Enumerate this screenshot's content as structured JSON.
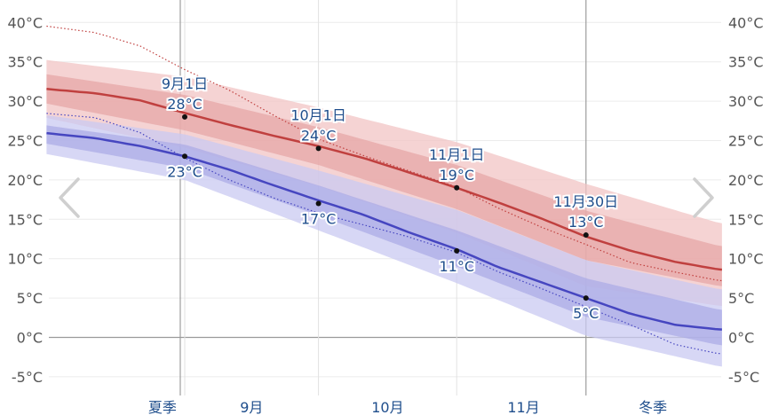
{
  "chart_data": {
    "type": "line",
    "y_ticks": [
      "40°C",
      "35°C",
      "30°C",
      "25°C",
      "20°C",
      "15°C",
      "10°C",
      "5°C",
      "0°C",
      "-5°C"
    ],
    "y_values": [
      40,
      35,
      30,
      25,
      20,
      15,
      10,
      5,
      0,
      -5
    ],
    "ylim": [
      -6,
      41
    ],
    "x_range_days": [
      0,
      120
    ],
    "season_labels": [
      {
        "label": "夏季",
        "day": -5
      },
      {
        "label": "9月",
        "day": 15
      },
      {
        "label": "10月",
        "day": 45.5
      },
      {
        "label": "11月",
        "day": 76
      },
      {
        "label": "冬季",
        "day": 105
      }
    ],
    "key_dates": [
      {
        "label": "9月1日",
        "day": 0,
        "high": 28,
        "low": 23,
        "high_label": "28°C",
        "low_label": "23°C"
      },
      {
        "label": "10月1日",
        "day": 30,
        "high": 24,
        "low": 17,
        "high_label": "24°C",
        "low_label": "17°C"
      },
      {
        "label": "11月1日",
        "day": 61,
        "high": 19,
        "low": 11,
        "high_label": "19°C",
        "low_label": "11°C"
      },
      {
        "label": "11月30日",
        "day": 90,
        "high": 13,
        "low": 5,
        "high_label": "13°C",
        "low_label": "5°C"
      }
    ],
    "grid": true,
    "series": [
      {
        "key": "high",
        "color": "#c0403f",
        "x": [
          -32,
          -20,
          -10,
          0,
          10,
          20,
          30,
          40,
          50,
          61,
          70,
          80,
          90,
          100,
          110,
          120
        ],
        "y": [
          31.6,
          31,
          30.1,
          28.5,
          27,
          25.6,
          24.3,
          22.8,
          21,
          19,
          17.2,
          15.1,
          12.8,
          11,
          9.6,
          8.6
        ]
      },
      {
        "key": "high_p90",
        "x": [
          -32,
          0,
          30,
          61,
          90,
          120
        ],
        "y": [
          35.3,
          33.1,
          29.2,
          24.8,
          19.5,
          14.5
        ]
      },
      {
        "key": "high_p75",
        "x": [
          -32,
          0,
          30,
          61,
          90,
          120
        ],
        "y": [
          33.5,
          30.8,
          26.7,
          21.9,
          16.1,
          11.6
        ]
      },
      {
        "key": "high_p25",
        "x": [
          -32,
          0,
          30,
          61,
          90,
          120
        ],
        "y": [
          29.8,
          26.3,
          21.9,
          16.3,
          9.8,
          6.5
        ]
      },
      {
        "key": "high_p10",
        "x": [
          -32,
          0,
          30,
          61,
          90,
          120
        ],
        "y": [
          28,
          24.1,
          19.2,
          13.3,
          6.5,
          4
        ]
      },
      {
        "key": "low",
        "color": "#4646c0",
        "x": [
          -32,
          -20,
          -10,
          0,
          10,
          20,
          30,
          40,
          50,
          61,
          70,
          80,
          90,
          100,
          110,
          120
        ],
        "y": [
          26,
          25.3,
          24.3,
          23,
          21.3,
          19.3,
          17.4,
          15.6,
          13.4,
          11.2,
          9,
          7,
          5,
          3,
          1.6,
          1
        ]
      },
      {
        "key": "low_p90",
        "x": [
          -32,
          0,
          30,
          61,
          90,
          120
        ],
        "y": [
          28.3,
          25.8,
          21.2,
          16.2,
          9.8,
          6.1
        ]
      },
      {
        "key": "low_p75",
        "x": [
          -32,
          0,
          30,
          61,
          90,
          120
        ],
        "y": [
          27,
          24.5,
          19.3,
          13.6,
          7.5,
          3.5
        ]
      },
      {
        "key": "low_p25",
        "x": [
          -32,
          0,
          30,
          61,
          90,
          120
        ],
        "y": [
          24.7,
          21.5,
          15.5,
          9,
          2.6,
          -1
        ]
      },
      {
        "key": "low_p10",
        "x": [
          -32,
          0,
          30,
          61,
          90,
          120
        ],
        "y": [
          23.4,
          20,
          13.6,
          6.9,
          0.2,
          -3.7
        ]
      },
      {
        "key": "record_high",
        "x": [
          -32,
          -20,
          -10,
          0,
          10,
          20,
          30,
          40,
          50,
          61,
          70,
          80,
          90,
          100,
          110,
          120
        ],
        "y": [
          39.6,
          38.7,
          37,
          34,
          31.4,
          28.2,
          25.2,
          23.1,
          21.2,
          19.1,
          16.5,
          14,
          11.8,
          9.5,
          8.3,
          7.2
        ]
      },
      {
        "key": "record_low",
        "x": [
          -32,
          -20,
          -10,
          0,
          10,
          20,
          30,
          40,
          50,
          61,
          70,
          80,
          90,
          100,
          110,
          120
        ],
        "y": [
          28.5,
          27.9,
          26,
          22.8,
          20,
          17.7,
          15.8,
          14.3,
          12.8,
          10.8,
          8.4,
          6.2,
          3.9,
          1.6,
          -0.9,
          -2.1
        ]
      }
    ]
  },
  "nav": {
    "prev_icon": "chevron-left-icon",
    "next_icon": "chevron-right-icon"
  }
}
